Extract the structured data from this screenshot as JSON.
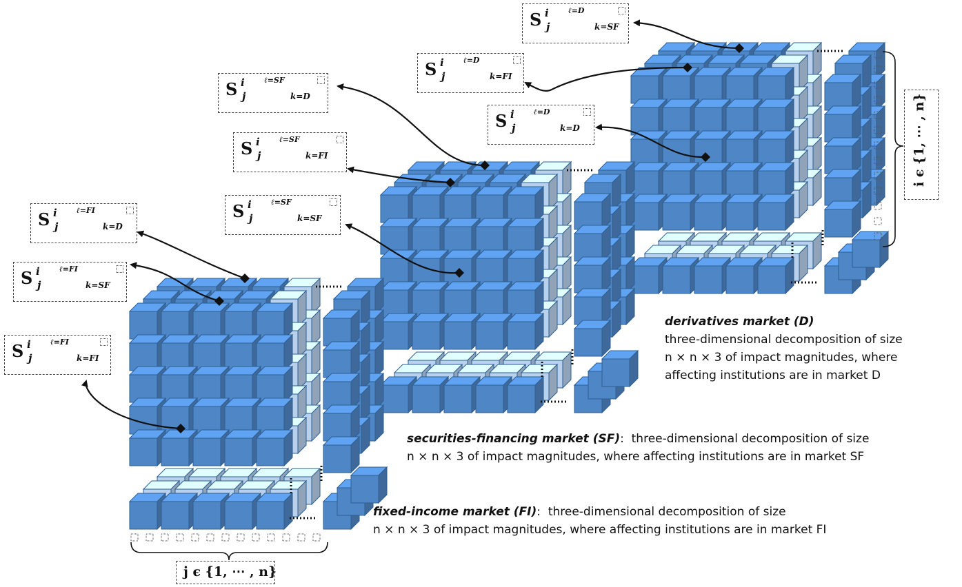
{
  "colors": {
    "front_cube": "#4f86c6",
    "back_cube": "#b9d1ec",
    "cube_edge": "#2d5f93",
    "text": "#111111"
  },
  "markets": [
    {
      "id": "D",
      "title": "derivatives market (D)",
      "desc_lines": [
        "three-dimensional decomposition of size",
        "n × n × 3  of impact magnitudes, where",
        "affecting institutions are in market D"
      ],
      "labels": [
        {
          "S": "S",
          "i": "i",
          "j": "j",
          "l": "ℓ=D",
          "k": "k=SF"
        },
        {
          "S": "S",
          "i": "i",
          "j": "j",
          "l": "ℓ=D",
          "k": "k=FI"
        },
        {
          "S": "S",
          "i": "i",
          "j": "j",
          "l": "ℓ=D",
          "k": "k=D"
        }
      ]
    },
    {
      "id": "SF",
      "title": "securities-financing market (SF)",
      "desc_lines": [
        "three-dimensional decomposition of size",
        "n × n × 3  of impact magnitudes, where affecting institutions are in market SF"
      ],
      "labels": [
        {
          "S": "S",
          "i": "i",
          "j": "j",
          "l": "ℓ=SF",
          "k": "k=D"
        },
        {
          "S": "S",
          "i": "i",
          "j": "j",
          "l": "ℓ=SF",
          "k": "k=FI"
        },
        {
          "S": "S",
          "i": "i",
          "j": "j",
          "l": "ℓ=SF",
          "k": "k=SF"
        }
      ]
    },
    {
      "id": "FI",
      "title": "fixed-income market (FI)",
      "desc_lines": [
        "three-dimensional decomposition of size",
        "n × n × 3  of impact magnitudes, where affecting institutions are in market FI"
      ],
      "labels": [
        {
          "S": "S",
          "i": "i",
          "j": "j",
          "l": "ℓ=FI",
          "k": "k=D"
        },
        {
          "S": "S",
          "i": "i",
          "j": "j",
          "l": "ℓ=FI",
          "k": "k=SF"
        },
        {
          "S": "S",
          "i": "i",
          "j": "j",
          "l": "ℓ=FI",
          "k": "k=FI"
        }
      ]
    }
  ],
  "index_i": "i ϵ {1, ⋯ , n}",
  "index_j": "j ϵ {1, ⋯ , n}",
  "ellipsis": "⋯"
}
